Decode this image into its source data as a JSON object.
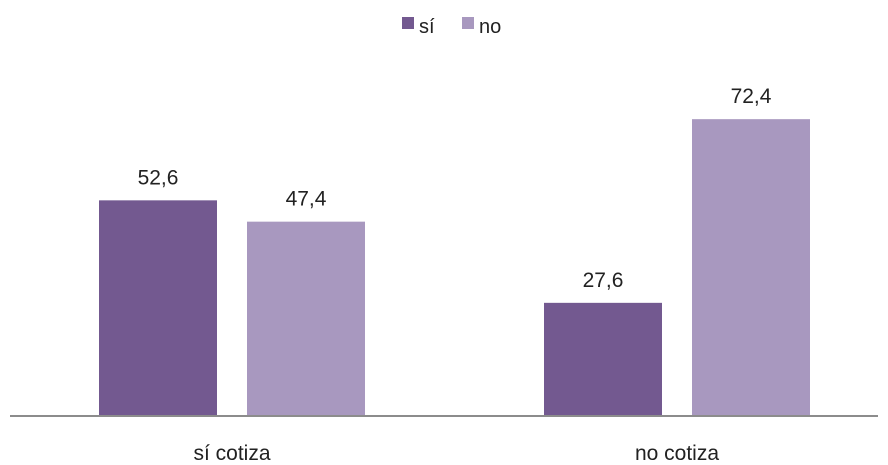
{
  "chart_data": {
    "type": "bar",
    "categories": [
      "sí cotiza",
      "no cotiza"
    ],
    "series": [
      {
        "name": "sí",
        "values": [
          "52,6",
          "27,6"
        ],
        "numeric_values": [
          52.6,
          27.6
        ],
        "color": "#735990"
      },
      {
        "name": "no",
        "values": [
          "47,4",
          "72,4"
        ],
        "numeric_values": [
          47.4,
          72.4
        ],
        "color": "#A898BF"
      }
    ],
    "title": "",
    "xlabel": "",
    "ylabel": "",
    "ylim": [
      0,
      100
    ],
    "grid": false,
    "legend": "top-center",
    "axis_color": "#8C8C8C"
  }
}
